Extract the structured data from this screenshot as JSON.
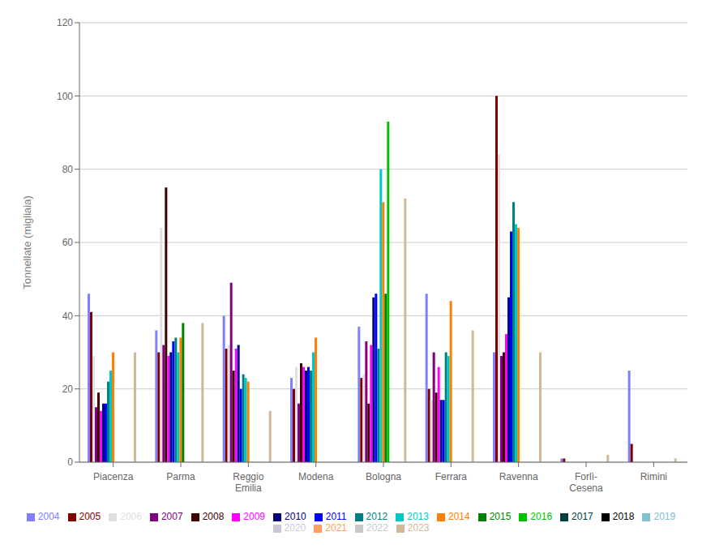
{
  "chart_data": {
    "type": "bar",
    "ylabel": "Tonnellate (migliaia)",
    "categories": [
      "Piacenza",
      "Parma",
      "Reggio\nEmilia",
      "Modena",
      "Bologna",
      "Ferrara",
      "Ravenna",
      "Forlì-\nCesena",
      "Rimini"
    ],
    "series": [
      {
        "name": "2004",
        "color": "#8080ff",
        "values": [
          46,
          36,
          40,
          23,
          37,
          46,
          30,
          1,
          25
        ]
      },
      {
        "name": "2005",
        "color": "#800000",
        "values": [
          41,
          30,
          31,
          20,
          23,
          20,
          100,
          1,
          5
        ]
      },
      {
        "name": "2006",
        "color": "#e0e0e0",
        "values": [
          29,
          64,
          32,
          26,
          24,
          17,
          84,
          0,
          0
        ]
      },
      {
        "name": "2007",
        "color": "#800080",
        "values": [
          15,
          32,
          49,
          16,
          33,
          30,
          29,
          0,
          0
        ]
      },
      {
        "name": "2008",
        "color": "#400000",
        "values": [
          19,
          75,
          25,
          27,
          16,
          19,
          30,
          0,
          0
        ]
      },
      {
        "name": "2009",
        "color": "#ff00ff",
        "values": [
          14,
          29,
          31,
          26,
          32,
          26,
          35,
          0,
          0
        ]
      },
      {
        "name": "2010",
        "color": "#000080",
        "values": [
          16,
          30,
          32,
          25,
          45,
          17,
          45,
          0,
          0
        ]
      },
      {
        "name": "2011",
        "color": "#0000ff",
        "values": [
          16,
          33,
          20,
          26,
          46,
          17,
          63,
          0,
          0
        ]
      },
      {
        "name": "2012",
        "color": "#008080",
        "values": [
          22,
          34,
          24,
          25,
          31,
          30,
          71,
          0,
          0
        ]
      },
      {
        "name": "2013",
        "color": "#00c8c8",
        "values": [
          25,
          30,
          23,
          30,
          80,
          29,
          65,
          0,
          0
        ]
      },
      {
        "name": "2014",
        "color": "#ff8000",
        "values": [
          30,
          34,
          22,
          34,
          71,
          44,
          64,
          0,
          0
        ]
      },
      {
        "name": "2015",
        "color": "#008000",
        "values": [
          0,
          38,
          0,
          0,
          46,
          0,
          0,
          0,
          0
        ]
      },
      {
        "name": "2016",
        "color": "#00c000",
        "values": [
          0,
          0,
          0,
          0,
          93,
          0,
          0,
          0,
          0
        ]
      },
      {
        "name": "2017",
        "color": "#004040",
        "values": [
          0,
          0,
          0,
          0,
          0,
          0,
          0,
          0,
          0
        ]
      },
      {
        "name": "2018",
        "color": "#000000",
        "values": [
          0,
          0,
          0,
          0,
          0,
          0,
          0,
          0,
          0
        ]
      },
      {
        "name": "2019",
        "color": "#80c0d0",
        "values": [
          0,
          0,
          0,
          0,
          0,
          0,
          0,
          0,
          0
        ]
      },
      {
        "name": "2020",
        "color": "#c8c8d8",
        "values": [
          0,
          0,
          0,
          0,
          0,
          0,
          0,
          0,
          0
        ]
      },
      {
        "name": "2021",
        "color": "#ffa060",
        "values": [
          0,
          0,
          0,
          0,
          0,
          0,
          0,
          0,
          0
        ]
      },
      {
        "name": "2022",
        "color": "#c8c8c8",
        "values": [
          0,
          0,
          0,
          0,
          0,
          0,
          0,
          0,
          0
        ]
      },
      {
        "name": "2023",
        "color": "#d0b898",
        "values": [
          30,
          38,
          14,
          0,
          72,
          36,
          30,
          2,
          1
        ]
      }
    ],
    "ylim": [
      0,
      120
    ],
    "yticks": [
      0,
      20,
      40,
      60,
      80,
      100,
      120
    ],
    "grid": true,
    "legend": "bottom"
  }
}
